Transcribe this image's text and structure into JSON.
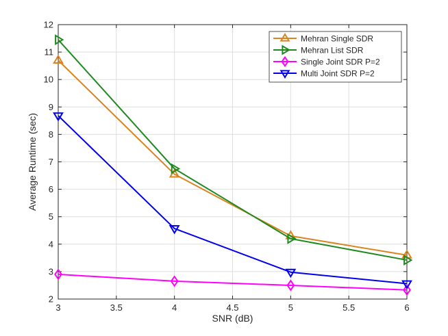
{
  "chart_data": {
    "type": "line",
    "title": "",
    "xlabel": "SNR (dB)",
    "ylabel": "Average Runtime (sec)",
    "xlim": [
      3,
      6
    ],
    "ylim": [
      2,
      12
    ],
    "grid": true,
    "legend_position": "top-right",
    "x": [
      3,
      4,
      5,
      6
    ],
    "xticks": [
      3,
      3.5,
      4,
      4.5,
      5,
      5.5,
      6
    ],
    "xtick_labels": [
      "3",
      "3.5",
      "4",
      "4.5",
      "5",
      "5.5",
      "6"
    ],
    "yticks": [
      2,
      3,
      4,
      5,
      6,
      7,
      8,
      9,
      10,
      11,
      12
    ],
    "ytick_labels": [
      "2",
      "3",
      "4",
      "5",
      "6",
      "7",
      "8",
      "9",
      "10",
      "11",
      "12"
    ],
    "series": [
      {
        "name": "Mehran Single SDR",
        "color": "#D9841F",
        "marker": "triangle-up",
        "values": [
          10.7,
          6.55,
          4.3,
          3.6
        ]
      },
      {
        "name": "Mehran List SDR",
        "color": "#1E8A1E",
        "marker": "triangle-right",
        "values": [
          11.45,
          6.75,
          4.2,
          3.42
        ]
      },
      {
        "name": "Single Joint SDR P=2",
        "color": "#FF00FF",
        "marker": "diamond",
        "values": [
          2.9,
          2.65,
          2.5,
          2.33
        ]
      },
      {
        "name": "Multi Joint SDR P=2",
        "color": "#0000EE",
        "marker": "triangle-down",
        "values": [
          8.68,
          4.57,
          2.98,
          2.56
        ]
      }
    ]
  }
}
